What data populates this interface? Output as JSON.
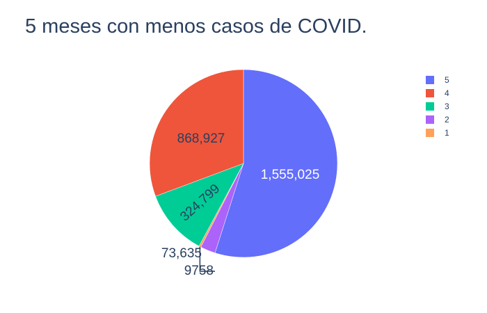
{
  "chart_data": {
    "type": "pie",
    "title": "5 meses con menos casos de COVID.",
    "direction": "clockwise",
    "legend_position": "top-right",
    "slices": [
      {
        "label": "5",
        "value": 1555025,
        "value_text": "1,555,025",
        "color": "#636efa",
        "label_position": "inside",
        "text_color": "#ffffff"
      },
      {
        "label": "2",
        "value": 73635,
        "value_text": "73,635",
        "color": "#ab63fa",
        "label_position": "outside",
        "text_color": "#2a3f5f"
      },
      {
        "label": "1",
        "value": 9758,
        "value_text": "9758",
        "color": "#ffa15a",
        "label_position": "outside",
        "text_color": "#2a3f5f"
      },
      {
        "label": "3",
        "value": 324799,
        "value_text": "324,799",
        "color": "#00cc96",
        "label_position": "inside-rotated",
        "text_color": "#2a3f5f"
      },
      {
        "label": "4",
        "value": 868927,
        "value_text": "868,927",
        "color": "#ef553b",
        "label_position": "inside",
        "text_color": "#2a3f5f"
      }
    ],
    "legend": [
      {
        "label": "5",
        "color": "#636efa"
      },
      {
        "label": "4",
        "color": "#ef553b"
      },
      {
        "label": "3",
        "color": "#00cc96"
      },
      {
        "label": "2",
        "color": "#ab63fa"
      },
      {
        "label": "1",
        "color": "#ffa15a"
      }
    ]
  }
}
